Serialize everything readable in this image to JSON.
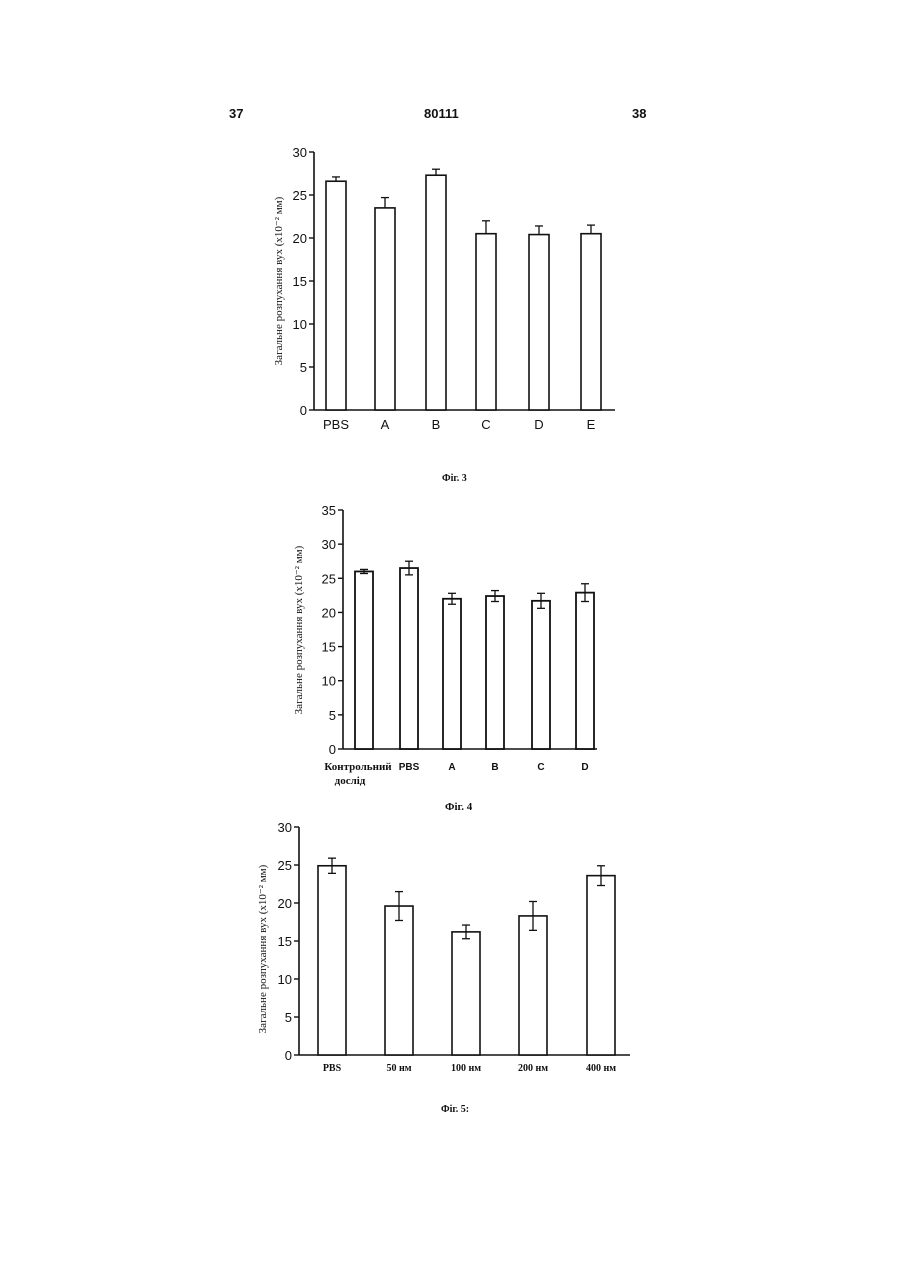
{
  "header": {
    "page_left": "37",
    "doc_number": "80111",
    "page_right": "38"
  },
  "chart_data": [
    {
      "type": "bar",
      "caption": "Фіг. 3",
      "ylabel": "Загальне розпухання вух (x10⁻² мм)",
      "ylim": [
        0,
        30
      ],
      "yticks": [
        "0",
        "5",
        "10",
        "15",
        "20",
        "25",
        "30"
      ],
      "categories": [
        "PBS",
        "A",
        "B",
        "C",
        "D",
        "E"
      ],
      "values": [
        26.6,
        23.5,
        27.3,
        20.5,
        20.4,
        20.5
      ],
      "errors": [
        0.5,
        1.2,
        0.7,
        1.5,
        1.0,
        1.0
      ],
      "error_style": "upper"
    },
    {
      "type": "bar",
      "caption": "Фіг. 4",
      "ylabel": "Загальне розпухання вух (x10⁻² мм)",
      "ylim": [
        0,
        35
      ],
      "yticks": [
        "0",
        "5",
        "10",
        "15",
        "20",
        "25",
        "30",
        "35"
      ],
      "categories": [
        "Контрольний дослід",
        "PBS",
        "A",
        "B",
        "C",
        "D"
      ],
      "values": [
        26.0,
        26.5,
        22.0,
        22.4,
        21.7,
        22.9
      ],
      "errors": [
        0.3,
        1.0,
        0.8,
        0.8,
        1.1,
        1.3
      ],
      "error_style": "both"
    },
    {
      "type": "bar",
      "caption": "Фіг. 5:",
      "ylabel": "Загальне розпухання вух (x10⁻² мм)",
      "ylim": [
        0,
        30
      ],
      "yticks": [
        "0",
        "5",
        "10",
        "15",
        "20",
        "25",
        "30"
      ],
      "categories": [
        "PBS",
        "50 нм",
        "100 нм",
        "200 нм",
        "400 нм"
      ],
      "values": [
        24.9,
        19.6,
        16.2,
        18.3,
        23.6
      ],
      "errors": [
        1.0,
        1.9,
        0.9,
        1.9,
        1.3
      ],
      "error_style": "both"
    }
  ]
}
